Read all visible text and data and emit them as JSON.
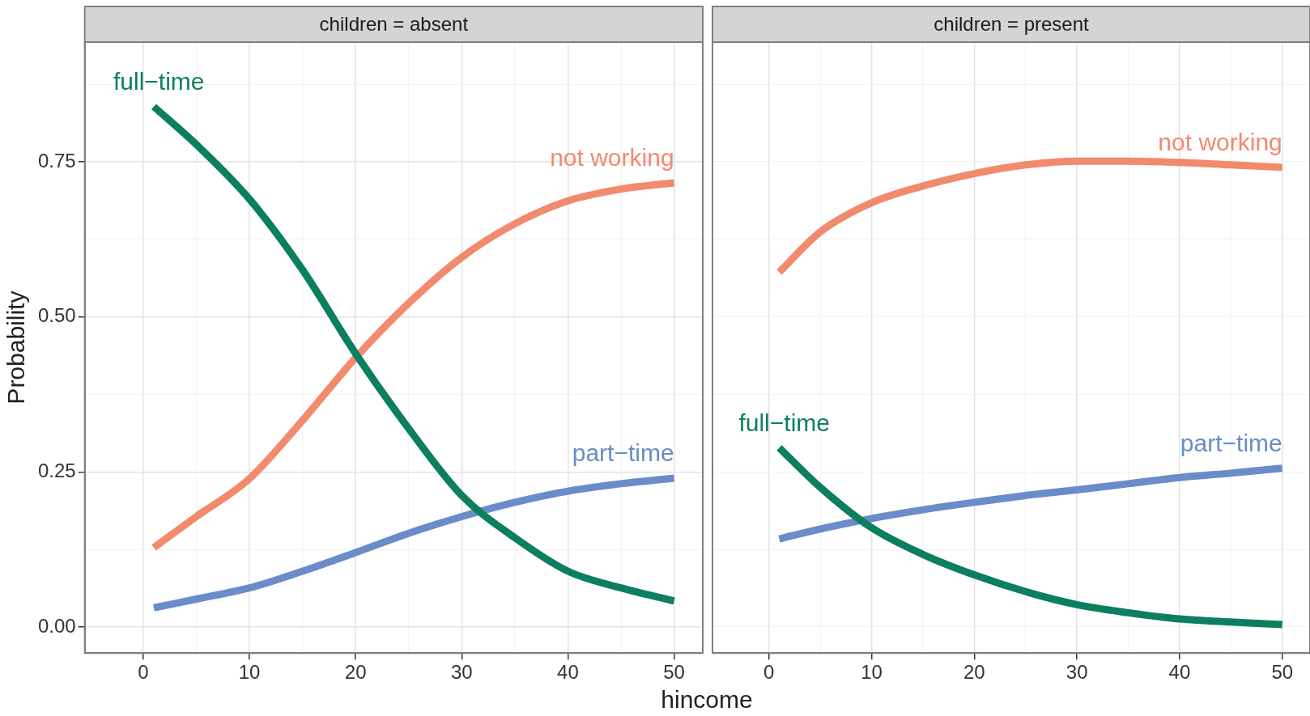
{
  "chart_data": [
    {
      "type": "line",
      "title": "children = absent",
      "xlabel": "hincome",
      "ylabel": "Probability",
      "x": [
        1,
        5,
        10,
        15,
        20,
        25,
        30,
        35,
        40,
        45,
        50
      ],
      "series": [
        {
          "name": "full−time",
          "color": "#0b7f60",
          "values": [
            0.839,
            0.778,
            0.69,
            0.576,
            0.441,
            0.32,
            0.212,
            0.144,
            0.09,
            0.063,
            0.042
          ]
        },
        {
          "name": "not working",
          "color": "#f28a6e",
          "values": [
            0.128,
            0.178,
            0.239,
            0.333,
            0.434,
            0.522,
            0.596,
            0.65,
            0.687,
            0.706,
            0.716
          ]
        },
        {
          "name": "part−time",
          "color": "#6a8cc8",
          "values": [
            0.031,
            0.045,
            0.063,
            0.09,
            0.12,
            0.151,
            0.178,
            0.201,
            0.219,
            0.231,
            0.24
          ]
        }
      ],
      "xlim": [
        -5.5,
        52.7
      ],
      "ylim": [
        -0.042,
        0.943
      ],
      "xticks": [
        0,
        {
          "value": 5,
          "label": null
        },
        10,
        {
          "value": 15,
          "label": null
        },
        20,
        {
          "value": 25,
          "label": null
        },
        30,
        {
          "value": 35,
          "label": null
        },
        40,
        {
          "value": 45,
          "label": null
        },
        50
      ],
      "yticks": [
        {
          "value": 0,
          "label": "0.00"
        },
        {
          "value": 0.125,
          "label": null
        },
        {
          "value": 0.25,
          "label": "0.25"
        },
        {
          "value": 0.375,
          "label": null
        },
        {
          "value": 0.5,
          "label": "0.50"
        },
        {
          "value": 0.625,
          "label": null
        },
        {
          "value": 0.75,
          "label": "0.75"
        },
        {
          "value": 0.875,
          "label": null
        }
      ],
      "grid": true
    },
    {
      "type": "line",
      "title": "children = present",
      "x": [
        1,
        5,
        10,
        15,
        20,
        25,
        30,
        35,
        40,
        45,
        50
      ],
      "series": [
        {
          "name": "full−time",
          "color": "#0b7f60",
          "values": [
            0.289,
            0.225,
            0.16,
            0.117,
            0.084,
            0.057,
            0.036,
            0.023,
            0.013,
            0.008,
            0.004
          ]
        },
        {
          "name": "not working",
          "color": "#f28a6e",
          "values": [
            0.572,
            0.637,
            0.684,
            0.711,
            0.731,
            0.745,
            0.751,
            0.751,
            0.749,
            0.745,
            0.741
          ]
        },
        {
          "name": "part−time",
          "color": "#6a8cc8",
          "values": [
            0.142,
            0.158,
            0.175,
            0.189,
            0.201,
            0.212,
            0.221,
            0.231,
            0.241,
            0.248,
            0.256
          ]
        }
      ],
      "xlim": [
        -5.5,
        52.7
      ],
      "ylim": [
        -0.042,
        0.943
      ],
      "xticks": [
        0,
        {
          "value": 5,
          "label": null
        },
        10,
        {
          "value": 15,
          "label": null
        },
        20,
        {
          "value": 25,
          "label": null
        },
        30,
        {
          "value": 35,
          "label": null
        },
        40,
        {
          "value": 45,
          "label": null
        },
        50
      ],
      "yticks": [
        {
          "value": 0,
          "label": null
        },
        {
          "value": 0.125,
          "label": null
        },
        {
          "value": 0.25,
          "label": null
        },
        {
          "value": 0.375,
          "label": null
        },
        {
          "value": 0.5,
          "label": null
        },
        {
          "value": 0.625,
          "label": null
        },
        {
          "value": 0.75,
          "label": null
        },
        {
          "value": 0.875,
          "label": null
        }
      ],
      "grid": true,
      "tick_labels": "x"
    }
  ]
}
